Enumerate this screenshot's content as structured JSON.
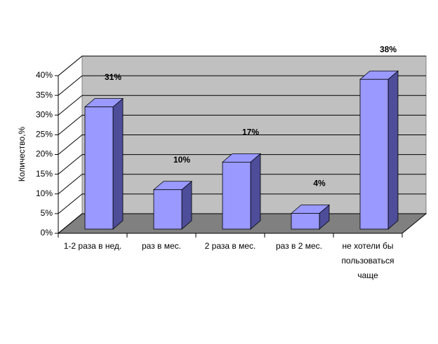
{
  "chart_data": {
    "type": "bar3d",
    "y_label": "Количество,%",
    "categories": [
      "1-2 раза в нед.",
      "раз в мес.",
      "2 раза в мес.",
      "раз в 2 мес.",
      "не хотели бы пользоваться чаще"
    ],
    "values": [
      31,
      10,
      17,
      4,
      38
    ],
    "value_labels": [
      "31%",
      "10%",
      "17%",
      "4%",
      "38%"
    ],
    "color": "#9999ff",
    "ylim": [
      0,
      40
    ],
    "yticks": [
      {
        "value": 0,
        "label": "0%"
      },
      {
        "value": 5,
        "label": "5%"
      },
      {
        "value": 10,
        "label": "10%"
      },
      {
        "value": 15,
        "label": "15%"
      },
      {
        "value": 20,
        "label": "20%"
      },
      {
        "value": 25,
        "label": "25%"
      },
      {
        "value": 30,
        "label": "30%"
      },
      {
        "value": 35,
        "label": "35%"
      },
      {
        "value": 40,
        "label": "40%"
      }
    ],
    "grid": true
  }
}
